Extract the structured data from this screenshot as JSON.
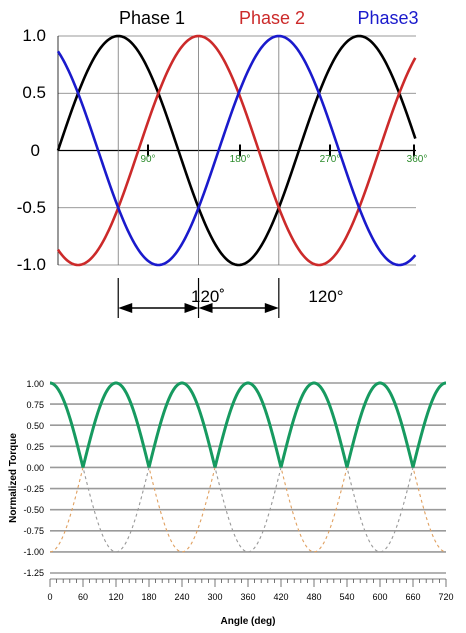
{
  "chart_data": [
    {
      "type": "line",
      "title_parts": [
        "Phase 1",
        "Phase 2",
        "Phase3"
      ],
      "y_ticks": [
        "1.0",
        "0.5",
        "0",
        "-0.5",
        "-1.0"
      ],
      "ylim": [
        -1,
        1
      ],
      "x_range_deg": [
        -90,
        420
      ],
      "angle_labels": [
        "90°",
        "180°",
        "270°",
        "360°"
      ],
      "series": [
        {
          "name": "Phase 1",
          "color": "#000000",
          "phase_deg": 0
        },
        {
          "name": "Phase 2",
          "color": "#cc2a2a",
          "phase_deg": 120
        },
        {
          "name": "Phase3",
          "color": "#1a1acc",
          "phase_deg": 240
        }
      ],
      "spacing_labels": [
        "120˚",
        "120°"
      ],
      "spacing_markers_deg": [
        90,
        210,
        330
      ]
    },
    {
      "type": "line",
      "xlabel": "Angle (deg)",
      "ylabel": "Normalized Torque",
      "x_ticks": [
        "0",
        "60",
        "120",
        "180",
        "240",
        "300",
        "360",
        "420",
        "480",
        "540",
        "600",
        "660",
        "720"
      ],
      "y_ticks": [
        "1.00",
        "0.75",
        "0.50",
        "0.25",
        "0.00",
        "-0.25",
        "-0.50",
        "-0.75",
        "-1.00",
        "-1.25"
      ],
      "xlim": [
        0,
        720
      ],
      "ylim": [
        -1.25,
        1.0
      ],
      "series": [
        {
          "name": "",
          "style": "dashed",
          "color": "#e0a060",
          "formula": "sin(2x)",
          "phase_deg": 0
        },
        {
          "name": "",
          "style": "dashed",
          "color": "#999999",
          "formula": "sin(2x)",
          "phase_deg": 120
        },
        {
          "name": "",
          "style": "solid",
          "color": "#179a60",
          "formula": "max |sin(2x)|",
          "phase_deg": 0
        }
      ]
    }
  ]
}
